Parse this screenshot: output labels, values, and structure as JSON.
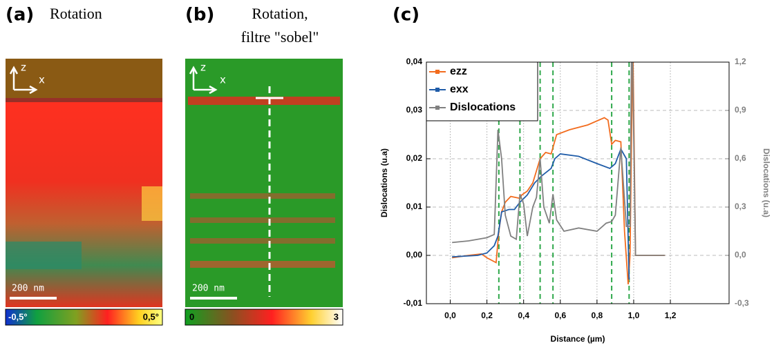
{
  "panels": [
    {
      "label": "(a)",
      "title": "Rotation",
      "axes": [
        "z",
        "x"
      ],
      "scale_bar": "200 nm",
      "colorbar_min": "-0,5°",
      "colorbar_max": "0,5°"
    },
    {
      "label": "(b)",
      "title": "Rotation,",
      "subtitle": "filtre \"sobel\"",
      "axes": [
        "z",
        "x"
      ],
      "scale_bar": "200 nm",
      "colorbar_min": "0",
      "colorbar_max": "3"
    }
  ],
  "chart_label": "(c)",
  "chart_data": {
    "type": "line",
    "x_label": "Distance (µm)",
    "y_label": "Dislocations (u.a)",
    "y2_label": "Dislocations (u.a)",
    "xlim": [
      -0.13,
      1.52
    ],
    "ylim": [
      -0.01,
      0.04
    ],
    "y2lim": [
      -0.3,
      1.2
    ],
    "xticks": [
      {
        "value": 0,
        "label": "0,0"
      },
      {
        "value": 0.2,
        "label": "0,2"
      },
      {
        "value": 0.4,
        "label": "0,4"
      },
      {
        "value": 0.6,
        "label": "0,6"
      },
      {
        "value": 0.8,
        "label": "0,8"
      },
      {
        "value": 1,
        "label": "1,0"
      },
      {
        "value": 1.2,
        "label": "1,2"
      }
    ],
    "yticks": [
      {
        "value": -0.01,
        "label": "-0,01"
      },
      {
        "value": 0,
        "label": "0,00"
      },
      {
        "value": 0.01,
        "label": "0,01"
      },
      {
        "value": 0.02,
        "label": "0,02"
      },
      {
        "value": 0.03,
        "label": "0,03"
      },
      {
        "value": 0.04,
        "label": "0,04"
      }
    ],
    "y2ticks": [
      {
        "value": -0.3,
        "label": "-0,3"
      },
      {
        "value": 0,
        "label": "0,0"
      },
      {
        "value": 0.3,
        "label": "0,3"
      },
      {
        "value": 0.6,
        "label": "0,6"
      },
      {
        "value": 0.9,
        "label": "0,9"
      },
      {
        "value": 1.2,
        "label": "1,2"
      }
    ],
    "grid": true,
    "reference_lines": [
      0.265,
      0.38,
      0.49,
      0.56,
      0.88,
      0.975
    ],
    "reference_color": "#2ea84a",
    "series": [
      {
        "name": "ezz",
        "color": "#f26b1d",
        "x": [
          0.01,
          0.1,
          0.17,
          0.2,
          0.25,
          0.265,
          0.28,
          0.3,
          0.33,
          0.38,
          0.39,
          0.42,
          0.45,
          0.49,
          0.52,
          0.55,
          0.58,
          0.65,
          0.75,
          0.84,
          0.86,
          0.88,
          0.9,
          0.93,
          0.95,
          0.97,
          0.98,
          0.995,
          1.01,
          1.17
        ],
        "values": [
          -0.0005,
          0,
          0.0003,
          -0.0005,
          -0.0015,
          0.005,
          0.009,
          0.011,
          0.0122,
          0.0118,
          0.0125,
          0.0133,
          0.015,
          0.02,
          0.0213,
          0.021,
          0.025,
          0.026,
          0.027,
          0.0285,
          0.028,
          0.023,
          0.0238,
          0.0235,
          0.005,
          -0.006,
          0,
          0.045,
          0,
          0
        ]
      },
      {
        "name": "exx",
        "color": "#1f5ca8",
        "x": [
          0.01,
          0.15,
          0.2,
          0.24,
          0.26,
          0.28,
          0.32,
          0.35,
          0.38,
          0.42,
          0.46,
          0.5,
          0.55,
          0.57,
          0.6,
          0.7,
          0.8,
          0.87,
          0.9,
          0.93,
          0.96,
          0.975
        ],
        "values": [
          -0.0003,
          0,
          0.0005,
          0.002,
          0.004,
          0.009,
          0.0095,
          0.0095,
          0.011,
          0.0125,
          0.015,
          0.0165,
          0.018,
          0.02,
          0.021,
          0.0205,
          0.019,
          0.018,
          0.019,
          0.022,
          0.02,
          -0.005
        ]
      },
      {
        "name": "Dislocations",
        "color": "#808080",
        "axis": "y2",
        "x": [
          0.01,
          0.1,
          0.2,
          0.24,
          0.26,
          0.28,
          0.3,
          0.33,
          0.36,
          0.38,
          0.4,
          0.42,
          0.45,
          0.47,
          0.49,
          0.51,
          0.54,
          0.56,
          0.58,
          0.62,
          0.7,
          0.8,
          0.85,
          0.88,
          0.9,
          0.93,
          0.96,
          0.98,
          0.99,
          1.01,
          1.17
        ],
        "values": [
          0.08,
          0.09,
          0.11,
          0.13,
          0.78,
          0.6,
          0.25,
          0.12,
          0.1,
          0.38,
          0.32,
          0.12,
          0.3,
          0.36,
          0.6,
          0.3,
          0.2,
          0.38,
          0.22,
          0.15,
          0.17,
          0.15,
          0.2,
          0.21,
          0.25,
          0.67,
          0.18,
          0.18,
          1.5,
          0,
          0
        ]
      }
    ]
  }
}
